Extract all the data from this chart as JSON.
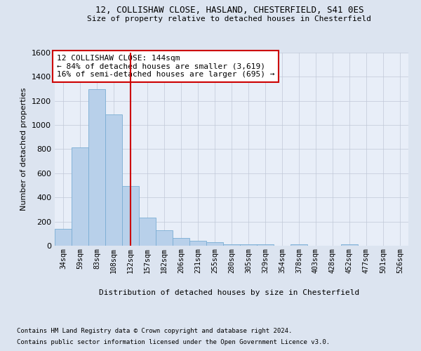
{
  "title_line1": "12, COLLISHAW CLOSE, HASLAND, CHESTERFIELD, S41 0ES",
  "title_line2": "Size of property relative to detached houses in Chesterfield",
  "xlabel": "Distribution of detached houses by size in Chesterfield",
  "ylabel": "Number of detached properties",
  "bar_values": [
    140,
    815,
    1295,
    1090,
    495,
    232,
    130,
    65,
    38,
    27,
    13,
    13,
    13,
    0,
    13,
    0,
    0,
    13,
    0,
    0,
    0
  ],
  "bin_labels": [
    "34sqm",
    "59sqm",
    "83sqm",
    "108sqm",
    "132sqm",
    "157sqm",
    "182sqm",
    "206sqm",
    "231sqm",
    "255sqm",
    "280sqm",
    "305sqm",
    "329sqm",
    "354sqm",
    "378sqm",
    "403sqm",
    "428sqm",
    "452sqm",
    "477sqm",
    "501sqm",
    "526sqm"
  ],
  "bar_color": "#b8d0ea",
  "bar_edge_color": "#7aadd4",
  "grid_color": "#c0c8d8",
  "vline_x": 4.5,
  "vline_color": "#cc0000",
  "annotation_text": "12 COLLISHAW CLOSE: 144sqm\n← 84% of detached houses are smaller (3,619)\n16% of semi-detached houses are larger (695) →",
  "annotation_box_color": "#ffffff",
  "annotation_box_edge": "#cc0000",
  "ylim": [
    0,
    1600
  ],
  "yticks": [
    0,
    200,
    400,
    600,
    800,
    1000,
    1200,
    1400,
    1600
  ],
  "footer_line1": "Contains HM Land Registry data © Crown copyright and database right 2024.",
  "footer_line2": "Contains public sector information licensed under the Open Government Licence v3.0.",
  "bg_color": "#dce4f0",
  "plot_bg_color": "#e8eef8"
}
